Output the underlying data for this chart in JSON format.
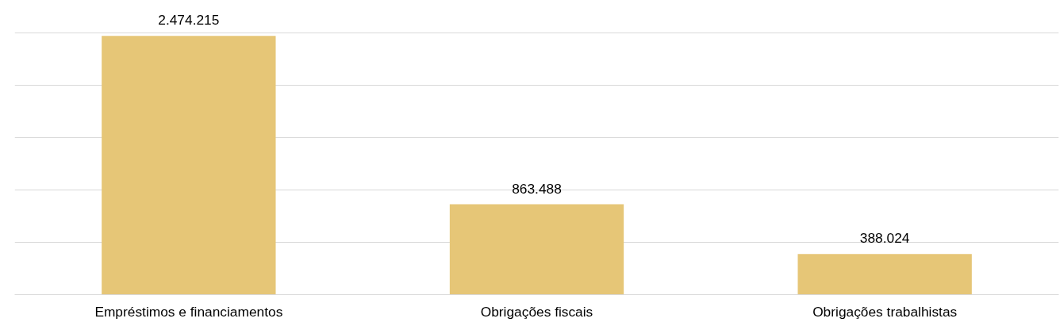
{
  "chart_data": {
    "type": "bar",
    "categories": [
      "Empréstimos e financiamentos",
      "Obrigações fiscais",
      "Obrigações trabalhistas"
    ],
    "values": [
      2474215,
      863488,
      388024
    ],
    "value_labels": [
      "2.474.215",
      "863.488",
      "388.024"
    ],
    "color": "#e6c677",
    "tick_labels": "x",
    "grid": "y"
  }
}
